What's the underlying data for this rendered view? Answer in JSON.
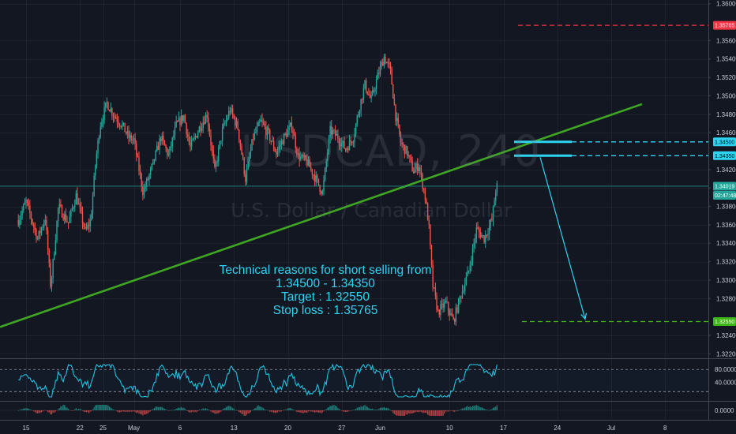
{
  "chart_data": {
    "type": "candlestick",
    "symbol_watermark": "USDCAD, 240",
    "name_watermark": "U.S. Dollar / Canadian Dollar",
    "y_axis": {
      "min": 1.3216,
      "max": 1.3604,
      "ticks": [
        "1.36000",
        "1.35600",
        "1.35400",
        "1.35200",
        "1.35000",
        "1.34800",
        "1.34600",
        "1.34200",
        "1.34000",
        "1.33800",
        "1.33600",
        "1.33400",
        "1.33200",
        "1.33000",
        "1.32800",
        "1.32400",
        "1.32200"
      ]
    },
    "x_axis": {
      "ticks": [
        {
          "label": "15",
          "day": 15
        },
        {
          "label": "22",
          "day": 22
        },
        {
          "label": "25",
          "day": 25
        },
        {
          "label": "May",
          "day": 29
        },
        {
          "label": "6",
          "day": 35
        },
        {
          "label": "13",
          "day": 42
        },
        {
          "label": "20",
          "day": 49
        },
        {
          "label": "27",
          "day": 56
        },
        {
          "label": "Jun",
          "day": 61
        },
        {
          "label": "10",
          "day": 70
        },
        {
          "label": "17",
          "day": 77
        },
        {
          "label": "24",
          "day": 84
        },
        {
          "label": "Jul",
          "day": 91
        },
        {
          "label": "8",
          "day": 98
        }
      ]
    },
    "price_tags": [
      {
        "label": "1.35765",
        "value": 1.35765,
        "color": "#f23645",
        "text_color": "#ffffff"
      },
      {
        "label": "1.34500",
        "value": 1.345,
        "color": "#2ed3f0",
        "text_color": "#000000"
      },
      {
        "label": "1.34350",
        "value": 1.3435,
        "color": "#2ed3f0",
        "text_color": "#000000"
      },
      {
        "label": "1.34019",
        "value": 1.34019,
        "color": "#26a69a",
        "text_color": "#ffffff"
      },
      {
        "label": "02:47:48",
        "value": 1.3392,
        "color": "#26a69a",
        "text_color": "#ffffff"
      },
      {
        "label": "1.32550",
        "value": 1.3255,
        "color": "#3fb618",
        "text_color": "#ffffff"
      }
    ],
    "levels": {
      "stop_loss": 1.35765,
      "entry_high": 1.345,
      "entry_low": 1.3435,
      "target": 1.3255,
      "current": 1.34019
    },
    "trendline": {
      "from": {
        "day": 14.0,
        "price": 1.3256
      },
      "to": {
        "day": 95.0,
        "price": 1.3491
      }
    },
    "price_path": [
      {
        "day": 14.0,
        "price": 1.3365
      },
      {
        "day": 15.0,
        "price": 1.3385
      },
      {
        "day": 16.5,
        "price": 1.3345
      },
      {
        "day": 17.5,
        "price": 1.3368
      },
      {
        "day": 18.2,
        "price": 1.3292
      },
      {
        "day": 19.2,
        "price": 1.338
      },
      {
        "day": 20.5,
        "price": 1.3362
      },
      {
        "day": 21.5,
        "price": 1.3392
      },
      {
        "day": 22.7,
        "price": 1.3352
      },
      {
        "day": 23.4,
        "price": 1.3365
      },
      {
        "day": 24.0,
        "price": 1.3425
      },
      {
        "day": 24.6,
        "price": 1.3468
      },
      {
        "day": 25.5,
        "price": 1.3492
      },
      {
        "day": 26.5,
        "price": 1.3478
      },
      {
        "day": 27.5,
        "price": 1.3468
      },
      {
        "day": 28.3,
        "price": 1.3455
      },
      {
        "day": 29.0,
        "price": 1.3452
      },
      {
        "day": 30.2,
        "price": 1.3395
      },
      {
        "day": 31.2,
        "price": 1.3418
      },
      {
        "day": 32.5,
        "price": 1.3455
      },
      {
        "day": 33.5,
        "price": 1.3435
      },
      {
        "day": 34.5,
        "price": 1.3468
      },
      {
        "day": 35.5,
        "price": 1.3478
      },
      {
        "day": 36.3,
        "price": 1.3443
      },
      {
        "day": 37.5,
        "price": 1.3465
      },
      {
        "day": 38.5,
        "price": 1.348
      },
      {
        "day": 39.5,
        "price": 1.3418
      },
      {
        "day": 40.5,
        "price": 1.3462
      },
      {
        "day": 41.5,
        "price": 1.3485
      },
      {
        "day": 42.5,
        "price": 1.3465
      },
      {
        "day": 43.5,
        "price": 1.341
      },
      {
        "day": 44.5,
        "price": 1.3455
      },
      {
        "day": 45.5,
        "price": 1.3472
      },
      {
        "day": 46.5,
        "price": 1.3458
      },
      {
        "day": 47.5,
        "price": 1.3438
      },
      {
        "day": 48.5,
        "price": 1.3455
      },
      {
        "day": 49.5,
        "price": 1.3468
      },
      {
        "day": 50.3,
        "price": 1.3435
      },
      {
        "day": 51.5,
        "price": 1.3428
      },
      {
        "day": 52.5,
        "price": 1.3412
      },
      {
        "day": 53.5,
        "price": 1.3395
      },
      {
        "day": 54.5,
        "price": 1.3462
      },
      {
        "day": 55.5,
        "price": 1.3455
      },
      {
        "day": 56.5,
        "price": 1.3442
      },
      {
        "day": 57.5,
        "price": 1.3455
      },
      {
        "day": 58.3,
        "price": 1.3488
      },
      {
        "day": 59.0,
        "price": 1.3512
      },
      {
        "day": 59.8,
        "price": 1.3495
      },
      {
        "day": 60.7,
        "price": 1.3522
      },
      {
        "day": 61.5,
        "price": 1.3542
      },
      {
        "day": 62.3,
        "price": 1.3528
      },
      {
        "day": 63.0,
        "price": 1.3478
      },
      {
        "day": 63.7,
        "price": 1.3448
      },
      {
        "day": 64.5,
        "price": 1.3438
      },
      {
        "day": 65.3,
        "price": 1.3418
      },
      {
        "day": 66.0,
        "price": 1.3425
      },
      {
        "day": 66.8,
        "price": 1.3392
      },
      {
        "day": 67.3,
        "price": 1.336
      },
      {
        "day": 67.8,
        "price": 1.3295
      },
      {
        "day": 68.5,
        "price": 1.3265
      },
      {
        "day": 69.5,
        "price": 1.3275
      },
      {
        "day": 70.5,
        "price": 1.3255
      },
      {
        "day": 71.5,
        "price": 1.3285
      },
      {
        "day": 72.5,
        "price": 1.331
      },
      {
        "day": 73.5,
        "price": 1.3355
      },
      {
        "day": 74.5,
        "price": 1.3345
      },
      {
        "day": 75.5,
        "price": 1.3365
      },
      {
        "day": 76.0,
        "price": 1.3398
      },
      {
        "day": 76.2,
        "price": 1.3402
      }
    ],
    "rsi": {
      "levels": [
        "80.0000",
        "40.0000"
      ]
    },
    "macd": {
      "levels": [
        "0.0000"
      ]
    },
    "annotation": [
      "Technical reasons for short selling from",
      "1.34500 - 1.34350",
      "Target : 1.32550",
      "Stop loss : 1.35765"
    ]
  }
}
